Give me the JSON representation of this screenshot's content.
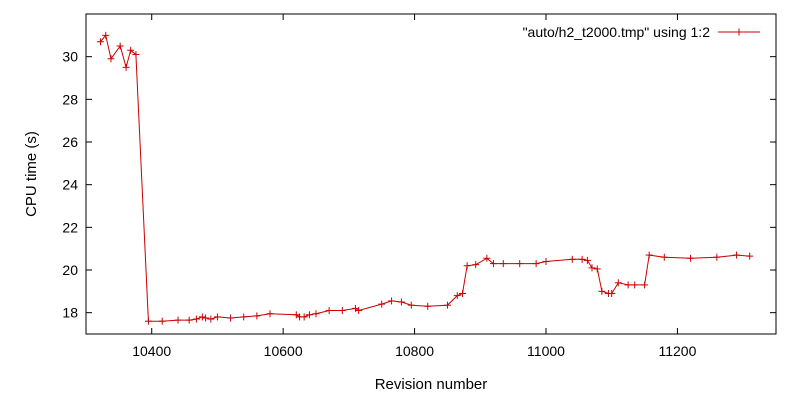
{
  "chart_data": {
    "type": "line",
    "title": "",
    "xlabel": "Revision number",
    "ylabel": "CPU time (s)",
    "xlim": [
      10300,
      11350
    ],
    "ylim": [
      17,
      32
    ],
    "xticks": [
      10400,
      10600,
      10800,
      11000,
      11200
    ],
    "yticks": [
      18,
      20,
      22,
      24,
      26,
      28,
      30
    ],
    "legend_position": "top-right",
    "grid": false,
    "series": [
      {
        "name": "\"auto/h2_t2000.tmp\" using 1:2",
        "color": "#cc0000",
        "marker": "plus",
        "points": [
          [
            10322,
            30.7
          ],
          [
            10330,
            31.0
          ],
          [
            10338,
            29.9
          ],
          [
            10352,
            30.5
          ],
          [
            10361,
            29.5
          ],
          [
            10368,
            30.3
          ],
          [
            10376,
            30.1
          ],
          [
            10395,
            17.6
          ],
          [
            10416,
            17.6
          ],
          [
            10440,
            17.65
          ],
          [
            10457,
            17.65
          ],
          [
            10468,
            17.7
          ],
          [
            10477,
            17.8
          ],
          [
            10482,
            17.75
          ],
          [
            10490,
            17.7
          ],
          [
            10500,
            17.8
          ],
          [
            10520,
            17.75
          ],
          [
            10540,
            17.8
          ],
          [
            10560,
            17.85
          ],
          [
            10580,
            17.95
          ],
          [
            10620,
            17.9
          ],
          [
            10625,
            17.8
          ],
          [
            10632,
            17.8
          ],
          [
            10640,
            17.9
          ],
          [
            10650,
            17.95
          ],
          [
            10670,
            18.1
          ],
          [
            10690,
            18.1
          ],
          [
            10710,
            18.2
          ],
          [
            10715,
            18.1
          ],
          [
            10750,
            18.4
          ],
          [
            10765,
            18.55
          ],
          [
            10780,
            18.5
          ],
          [
            10795,
            18.35
          ],
          [
            10820,
            18.3
          ],
          [
            10850,
            18.35
          ],
          [
            10865,
            18.8
          ],
          [
            10873,
            18.9
          ],
          [
            10880,
            20.2
          ],
          [
            10893,
            20.25
          ],
          [
            10910,
            20.55
          ],
          [
            10920,
            20.3
          ],
          [
            10935,
            20.3
          ],
          [
            10960,
            20.3
          ],
          [
            10985,
            20.3
          ],
          [
            11000,
            20.4
          ],
          [
            11040,
            20.5
          ],
          [
            11055,
            20.5
          ],
          [
            11063,
            20.45
          ],
          [
            11070,
            20.1
          ],
          [
            11078,
            20.05
          ],
          [
            11085,
            19.0
          ],
          [
            11095,
            18.9
          ],
          [
            11100,
            18.9
          ],
          [
            11110,
            19.4
          ],
          [
            11125,
            19.3
          ],
          [
            11135,
            19.3
          ],
          [
            11150,
            19.3
          ],
          [
            11157,
            20.7
          ],
          [
            11180,
            20.6
          ],
          [
            11220,
            20.55
          ],
          [
            11260,
            20.6
          ],
          [
            11290,
            20.7
          ],
          [
            11310,
            20.65
          ]
        ]
      }
    ]
  }
}
